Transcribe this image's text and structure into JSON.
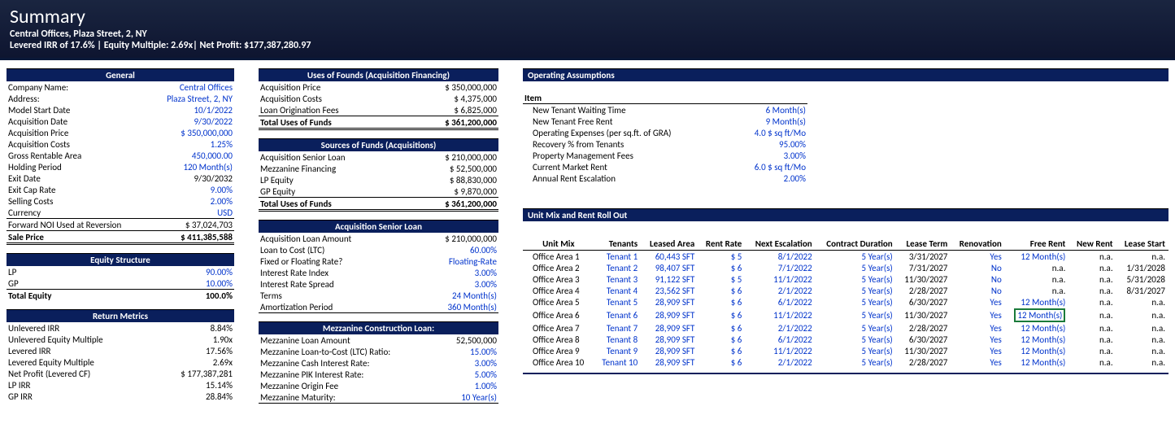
{
  "header": {
    "title": "Summary",
    "subtitle1": "Central Offices, Plaza Street, 2, NY",
    "subtitle2": "Levered IRR of 17.6% | Equity Multiple: 2.69x| Net Profit: $177,387,280.97"
  },
  "general": {
    "hdr": "General",
    "rows": [
      {
        "l": "Company Name:",
        "v": "Central Offices",
        "blue": true
      },
      {
        "l": "Address:",
        "v": "Plaza Street, 2, NY",
        "blue": true
      },
      {
        "l": "Model Start Date",
        "v": "10/1/2022",
        "blue": true
      },
      {
        "l": "Acquisition Date",
        "v": "9/30/2022",
        "blue": true
      },
      {
        "l": "Acquisition Price",
        "v": "$ 350,000,000",
        "blue": true
      },
      {
        "l": "Acquisition Costs",
        "v": "1.25%",
        "blue": true
      },
      {
        "l": "Gross Rentable Area",
        "v": "450,000.00",
        "blue": true
      },
      {
        "l": "Holding Period",
        "v": "120 Month(s)",
        "blue": true
      },
      {
        "l": "Exit Date",
        "v": "9/30/2032"
      },
      {
        "l": "Exit Cap Rate",
        "v": "9.00%",
        "blue": true
      },
      {
        "l": "Selling Costs",
        "v": "2.00%",
        "blue": true
      },
      {
        "l": "Currency",
        "v": "USD",
        "blue": true
      },
      {
        "l": "Forward NOI Used at Reversion",
        "v": "$ 37,024,703",
        "bt": true
      },
      {
        "l": "Sale Price",
        "v": "$ 411,385,588",
        "bold": true,
        "btd": true
      }
    ]
  },
  "equity": {
    "hdr": "Equity Structure",
    "rows": [
      {
        "l": "LP",
        "v": "90.00%",
        "blue": true
      },
      {
        "l": "GP",
        "v": "10.00%",
        "blue": true,
        "ul": true
      },
      {
        "l": "Total Equity",
        "v": "100.0%",
        "bold": true
      }
    ]
  },
  "returns": {
    "hdr": "Return Metrics",
    "rows": [
      {
        "l": "Unlevered IRR",
        "v": "8.84%"
      },
      {
        "l": "Unlevered Equity Multiple",
        "v": "1.90x"
      },
      {
        "l": "Levered IRR",
        "v": "17.56%"
      },
      {
        "l": "Levered Equity Multiple",
        "v": "2.69x"
      },
      {
        "l": "Net Profit (Levered CF)",
        "v": "$ 177,387,281"
      },
      {
        "l": "LP IRR",
        "v": "15.14%"
      },
      {
        "l": "GP  IRR",
        "v": "28.84%"
      }
    ]
  },
  "uses": {
    "hdr": "Uses of Founds  (Acquisition Financing)",
    "rows": [
      {
        "l": "Acquisition Price",
        "v": "$ 350,000,000"
      },
      {
        "l": "Acquisition Costs",
        "v": "$ 4,375,000"
      },
      {
        "l": "Loan Origination Fees",
        "v": "$ 6,825,000",
        "ul": true
      },
      {
        "l": "Total Uses of Funds",
        "v": "$ 361,200,000",
        "bold": true,
        "btd": true
      }
    ]
  },
  "sources": {
    "hdr": "Sources of Funds (Acquisitions)",
    "rows": [
      {
        "l": "Acquisition Senior Loan",
        "v": "$ 210,000,000"
      },
      {
        "l": "Mezzanine Financing",
        "v": "$ 52,500,000"
      },
      {
        "l": "LP Equity",
        "v": "$ 88,830,000"
      },
      {
        "l": "GP Equity",
        "v": "$ 9,870,000",
        "ul": true
      },
      {
        "l": "Total Uses of Funds",
        "v": "$ 361,200,000",
        "bold": true,
        "btd": true
      }
    ]
  },
  "senior": {
    "hdr": "Acquisition Senior Loan",
    "rows": [
      {
        "l": "Acquisition Loan Amount",
        "v": "$ 210,000,000"
      },
      {
        "l": "Loan to Cost (LTC)",
        "v": "60.00%",
        "blue": true
      },
      {
        "l": "Fixed or Floating Rate?",
        "v": "Floating-Rate",
        "blue": true
      },
      {
        "l": "Interest Rate Index",
        "v": "3.00%",
        "blue": true
      },
      {
        "l": "Interest Rate Spread",
        "v": "3.00%",
        "blue": true
      },
      {
        "l": "Terms",
        "v": "24 Month(s)",
        "blue": true
      },
      {
        "l": "Amortization Period",
        "v": "360 Month(s)",
        "blue": true,
        "ulb": true
      }
    ]
  },
  "mezz": {
    "hdr": "Mezzanine Construction Loan:",
    "rows": [
      {
        "l": "Mezzanine Loan Amount",
        "v": "52,500,000"
      },
      {
        "l": "Mezzanine Loan-to-Cost (LTC) Ratio:",
        "v": "15.00%",
        "blue": true
      },
      {
        "l": "Mezzanine Cash Interest Rate:",
        "v": "3.00%",
        "blue": true
      },
      {
        "l": "Mezzanine PIK Interest Rate:",
        "v": "5.00%",
        "blue": true
      },
      {
        "l": "Mezzanine Origin Fee",
        "v": "1.00%",
        "blue": true
      },
      {
        "l": "Mezzanine Maturity:",
        "v": "10 Year(s)",
        "blue": true,
        "ulb": true
      }
    ]
  },
  "opassump": {
    "hdr": "Operating Assumptions",
    "itemhdr": "Item",
    "rows": [
      {
        "l": "New Tenant Waiting Time",
        "v": "6 Month(s)",
        "blue": true
      },
      {
        "l": "New Tenant Free Rent",
        "v": "9 Month(s)",
        "blue": true
      },
      {
        "l": "Operating Expenses (per sq.ft. of GRA)",
        "v": "4.0 $ sq ft/Mo",
        "blue": true
      },
      {
        "l": "Recovery % from Tenants",
        "v": "95.00%",
        "blue": true
      },
      {
        "l": "Property Management Fees",
        "v": "3.00%",
        "blue": true
      },
      {
        "l": "Current Market Rent",
        "v": "6.0 $ sq ft/Mo",
        "blue": true
      },
      {
        "l": "Annual Rent Escalation",
        "v": "2.00%",
        "blue": true
      }
    ]
  },
  "rentroll": {
    "hdr": "Unit Mix and Rent Roll Out",
    "cols": [
      "Unit Mix",
      "Tenants",
      "Leased Area",
      "Rent Rate",
      "Next Escalation",
      "Contract Duration",
      "Lease Term",
      "Renovation",
      "Free Rent",
      "New Rent",
      "Lease Start"
    ],
    "rows": [
      {
        "u": "Office Area 1",
        "t": "Tenant 1",
        "la": "60,443 SFT",
        "rr": "$ 5",
        "ne": "8/1/2022",
        "cd": "5 Year(s)",
        "lt": "3/31/2027",
        "ren": "Yes",
        "fr": "12 Month(s)",
        "nr": "n.a.",
        "ls": "n.a."
      },
      {
        "u": "Office Area 2",
        "t": "Tenant 2",
        "la": "98,407 SFT",
        "rr": "$ 6",
        "ne": "7/1/2022",
        "cd": "5 Year(s)",
        "lt": "7/31/2027",
        "ren": "No",
        "fr": "n.a.",
        "nr": "n.a.",
        "ls": "1/31/2028"
      },
      {
        "u": "Office Area 3",
        "t": "Tenant 3",
        "la": "91,122 SFT",
        "rr": "$ 5",
        "ne": "11/1/2022",
        "cd": "5 Year(s)",
        "lt": "11/30/2027",
        "ren": "No",
        "fr": "n.a.",
        "nr": "n.a.",
        "ls": "5/31/2028"
      },
      {
        "u": "Office Area 4",
        "t": "Tenant 4",
        "la": "23,562 SFT",
        "rr": "$ 6",
        "ne": "2/1/2022",
        "cd": "5 Year(s)",
        "lt": "2/28/2027",
        "ren": "No",
        "fr": "n.a.",
        "nr": "n.a.",
        "ls": "8/31/2027"
      },
      {
        "u": "Office Area 5",
        "t": "Tenant 5",
        "la": "28,909 SFT",
        "rr": "$ 6",
        "ne": "6/1/2022",
        "cd": "5 Year(s)",
        "lt": "6/30/2027",
        "ren": "Yes",
        "fr": "12 Month(s)",
        "nr": "n.a.",
        "ls": "n.a."
      },
      {
        "u": "Office Area 6",
        "t": "Tenant 6",
        "la": "28,909 SFT",
        "rr": "$ 6",
        "ne": "11/1/2022",
        "cd": "5 Year(s)",
        "lt": "11/30/2027",
        "ren": "Yes",
        "fr": "12 Month(s)",
        "nr": "n.a.",
        "ls": "n.a.",
        "sel": true
      },
      {
        "u": "Office Area 7",
        "t": "Tenant 7",
        "la": "28,909 SFT",
        "rr": "$ 6",
        "ne": "2/1/2022",
        "cd": "5 Year(s)",
        "lt": "2/28/2027",
        "ren": "Yes",
        "fr": "12 Month(s)",
        "nr": "n.a.",
        "ls": "n.a."
      },
      {
        "u": "Office Area 8",
        "t": "Tenant 8",
        "la": "28,909 SFT",
        "rr": "$ 6",
        "ne": "6/1/2022",
        "cd": "5 Year(s)",
        "lt": "6/30/2027",
        "ren": "Yes",
        "fr": "12 Month(s)",
        "nr": "n.a.",
        "ls": "n.a."
      },
      {
        "u": "Office Area 9",
        "t": "Tenant 9",
        "la": "28,909 SFT",
        "rr": "$ 6",
        "ne": "11/1/2022",
        "cd": "5 Year(s)",
        "lt": "11/30/2027",
        "ren": "Yes",
        "fr": "12 Month(s)",
        "nr": "n.a.",
        "ls": "n.a."
      },
      {
        "u": "Office Area 10",
        "t": "Tenant 10",
        "la": "28,909 SFT",
        "rr": "$ 6",
        "ne": "2/1/2022",
        "cd": "5 Year(s)",
        "lt": "2/28/2027",
        "ren": "Yes",
        "fr": "12 Month(s)",
        "nr": "n.a.",
        "ls": "n.a."
      }
    ]
  }
}
